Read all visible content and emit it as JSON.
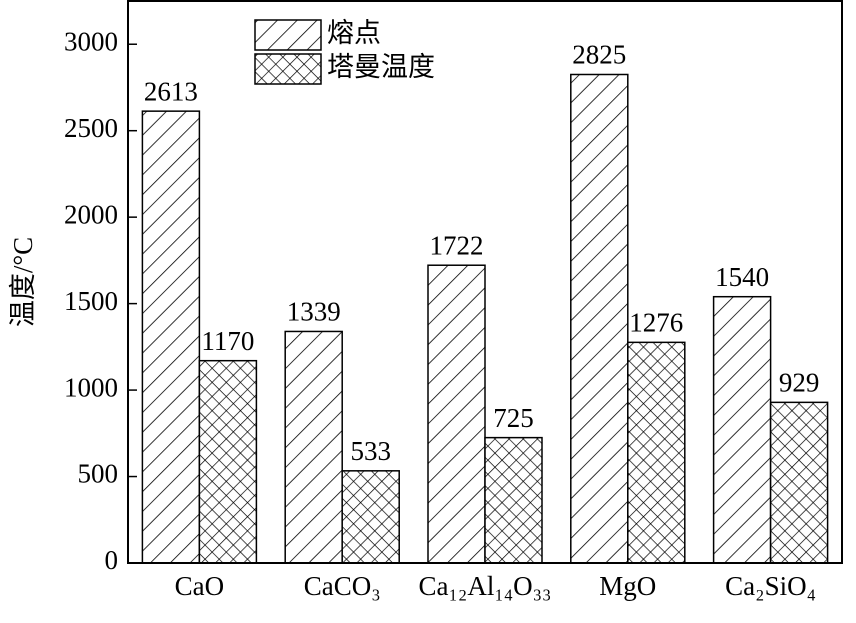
{
  "chart_data": {
    "type": "bar",
    "y_label": "温度/°C",
    "categories": [
      "CaO",
      "CaCO₃",
      "Ca₁₂Al₁₄O₃₃",
      "MgO",
      "Ca₂SiO₄"
    ],
    "series": [
      {
        "name": "熔点",
        "color": "#000000",
        "pattern": "hatch",
        "values": [
          2613,
          1339,
          1722,
          2825,
          1540
        ]
      },
      {
        "name": "塔曼温度",
        "color": "#000000",
        "pattern": "crosshatch",
        "values": [
          1170,
          533,
          725,
          1276,
          929
        ]
      }
    ],
    "ylim": [
      0,
      3250
    ],
    "yticks": [
      0,
      500,
      1000,
      1500,
      2000,
      2500,
      3000
    ],
    "legend": "upper left",
    "grid": false,
    "value_labels_shown": true
  }
}
